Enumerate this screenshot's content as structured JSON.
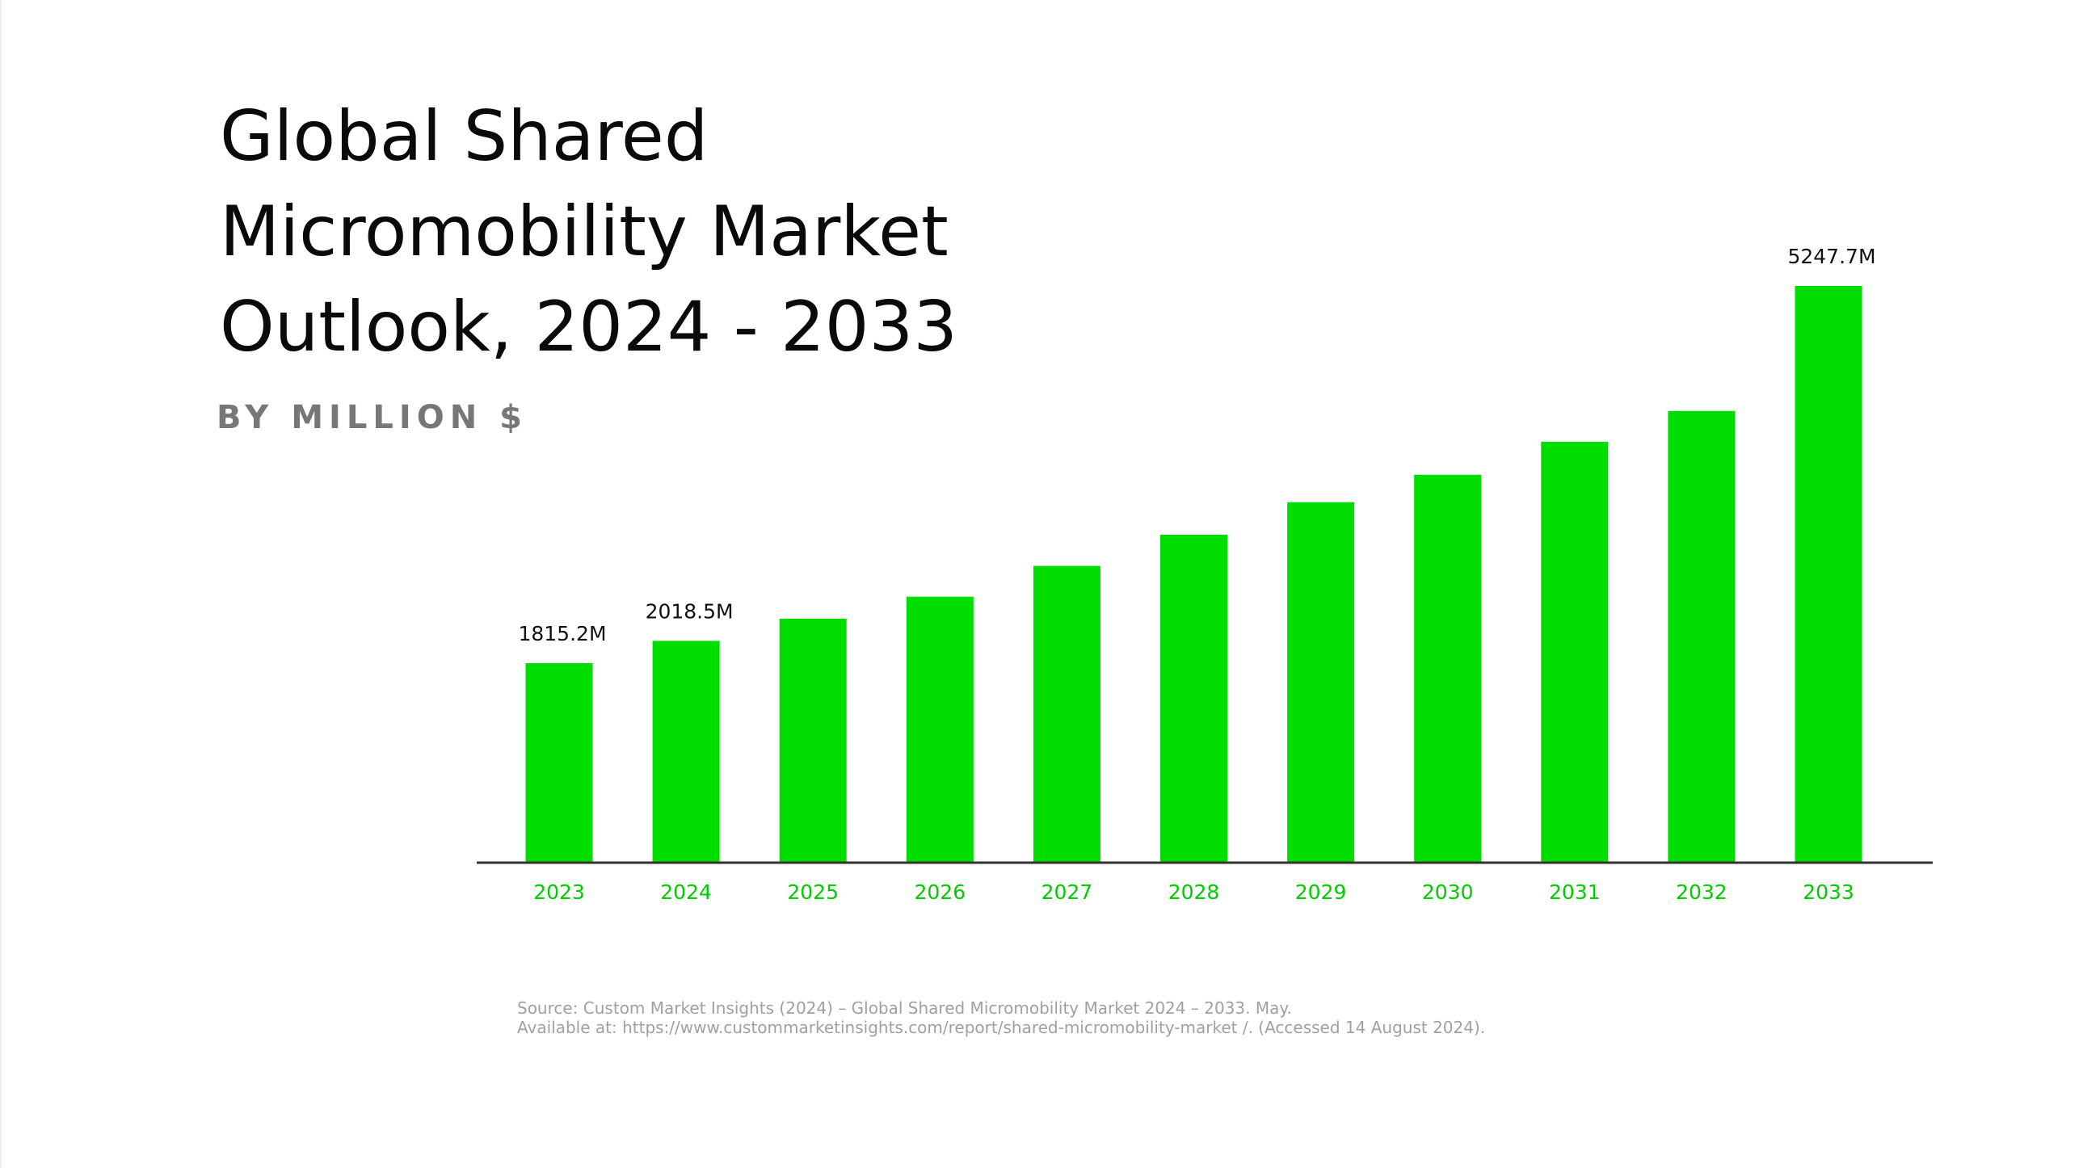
{
  "title_lines": [
    "Global Shared",
    "Micromobility Market",
    "Outlook, 2024 - 2033"
  ],
  "subtitle": "BY MILLION $",
  "source": {
    "line1": "Source: Custom Market Insights (2024) – Global Shared Micromobility Market 2024 – 2033. May.",
    "line2": "Available at: https://www.custommarketinsights.com/report/shared-micromobility-market /. (Accessed 14 August 2024)."
  },
  "colors": {
    "bar": "#00dd00",
    "axis_label": "#00cc00",
    "value_label": "#111111",
    "axis_line": "#333333"
  },
  "chart_data": {
    "type": "bar",
    "title": "Global Shared Micromobility Market Outlook, 2024 - 2033",
    "ylabel": "BY MILLION $",
    "xlabel": "",
    "grid": false,
    "categories": [
      "2023",
      "2024",
      "2025",
      "2026",
      "2027",
      "2028",
      "2029",
      "2030",
      "2031",
      "2032",
      "2033"
    ],
    "values": [
      1815.2,
      2018.5,
      2220,
      2420,
      2700,
      2985,
      3280,
      3530,
      3830,
      4110,
      5247.7
    ],
    "data_labels": [
      "1815.2M",
      "2018.5M",
      "",
      "",
      "",
      "",
      "",
      "",
      "",
      "",
      "5247.7M"
    ],
    "ylim": [
      0,
      5247.7
    ]
  }
}
